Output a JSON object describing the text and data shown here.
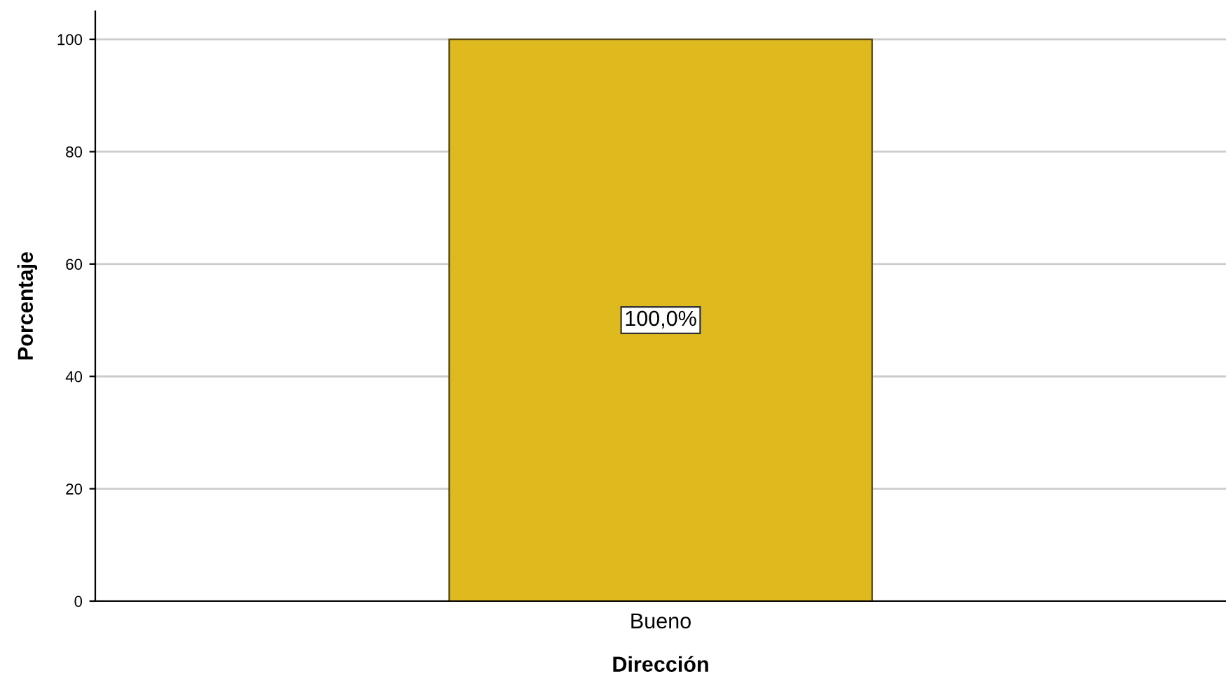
{
  "chart_data": {
    "type": "bar",
    "xlabel": "Dirección",
    "ylabel": "Porcentaje",
    "categories": [
      "Bueno"
    ],
    "values": [
      100
    ],
    "color": "#dfba1f",
    "value_labels": [
      "100,0%"
    ],
    "ylim": [
      0,
      105
    ],
    "yticks": [
      0,
      20,
      40,
      60,
      80,
      100
    ],
    "grid": "y"
  }
}
